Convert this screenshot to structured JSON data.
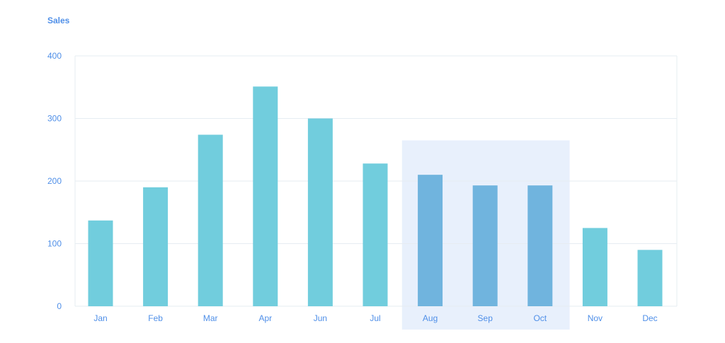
{
  "chart_data": {
    "type": "bar",
    "title": "Sales",
    "xlabel": "",
    "ylabel": "",
    "categories": [
      "Jan",
      "Feb",
      "Mar",
      "Apr",
      "Jun",
      "Jul",
      "Aug",
      "Sep",
      "Oct",
      "Nov",
      "Dec"
    ],
    "values": [
      137,
      190,
      274,
      351,
      300,
      228,
      210,
      193,
      193,
      125,
      90
    ],
    "ylim": [
      0,
      400
    ],
    "yticks": [
      "0",
      "100",
      "200",
      "300",
      "400"
    ],
    "grid": true,
    "highlighted_categories": [
      "Aug",
      "Sep",
      "Oct"
    ],
    "colors": {
      "bar": "#71cddd",
      "bar_highlighted": "#70b4de",
      "highlight_band": "#e8f0fc",
      "grid": "#e6ecf2",
      "axis_text": "#4f8fe8"
    }
  }
}
